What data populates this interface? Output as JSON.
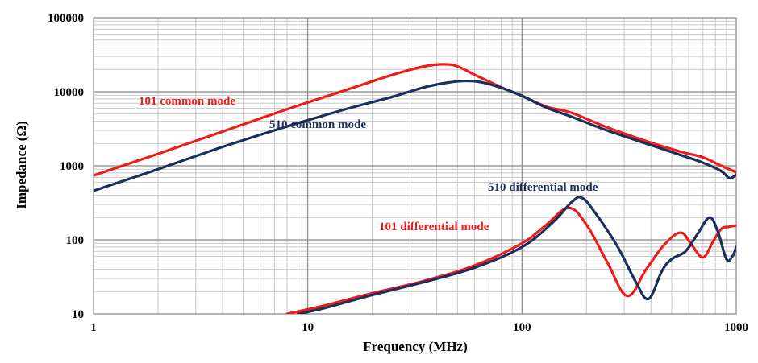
{
  "chart_data": {
    "type": "line",
    "title": "",
    "xlabel": "Frequency (MHz)",
    "ylabel": "Impedance (Ω)",
    "x_scale": "log",
    "y_scale": "log",
    "xlim": [
      1,
      1000
    ],
    "ylim": [
      10,
      100000
    ],
    "grid": true,
    "x_ticks": [
      {
        "value": 1,
        "label": "1"
      },
      {
        "value": 10,
        "label": "10"
      },
      {
        "value": 100,
        "label": "100"
      },
      {
        "value": 1000,
        "label": "1000"
      }
    ],
    "y_ticks": [
      {
        "value": 10,
        "label": "10"
      },
      {
        "value": 100,
        "label": "100"
      },
      {
        "value": 1000,
        "label": "1000"
      },
      {
        "value": 10000,
        "label": "10000"
      },
      {
        "value": 100000,
        "label": "100000"
      }
    ],
    "series": [
      {
        "name": "101 common mode",
        "color": "#ee1c1c",
        "x": [
          1,
          2,
          4,
          8,
          15,
          25,
          35,
          43,
          50,
          60,
          80,
          100,
          130,
          170,
          250,
          400,
          550,
          700,
          850,
          1000
        ],
        "y": [
          740,
          1450,
          2900,
          5800,
          10500,
          17000,
          22000,
          23500,
          22000,
          17000,
          11500,
          8800,
          6300,
          5200,
          3300,
          2050,
          1550,
          1300,
          1000,
          820
        ]
      },
      {
        "name": "510 common mode",
        "color": "#1b2f5c",
        "x": [
          1,
          2,
          4,
          8,
          15,
          25,
          35,
          45,
          55,
          65,
          80,
          100,
          130,
          170,
          250,
          400,
          550,
          700,
          850,
          930,
          1000
        ],
        "y": [
          460,
          900,
          1800,
          3400,
          5800,
          8600,
          11500,
          13300,
          14000,
          13400,
          11300,
          8800,
          6100,
          4600,
          3000,
          1900,
          1400,
          1100,
          850,
          680,
          760
        ]
      },
      {
        "name": "101 differential mode",
        "color": "#ee1c1c",
        "x": [
          8,
          12,
          20,
          35,
          60,
          100,
          130,
          165,
          200,
          250,
          310,
          380,
          460,
          550,
          620,
          700,
          780,
          850,
          920,
          1000
        ],
        "y": [
          10,
          13,
          19,
          28,
          45,
          90,
          160,
          270,
          160,
          50,
          17.5,
          40,
          85,
          125,
          85,
          58,
          95,
          140,
          150,
          155
        ]
      },
      {
        "name": "510 differential mode",
        "color": "#1b2f5c",
        "x": [
          9,
          12,
          20,
          35,
          60,
          100,
          140,
          170,
          190,
          220,
          280,
          340,
          390,
          450,
          500,
          580,
          660,
          750,
          820,
          900,
          960,
          1000
        ],
        "y": [
          10,
          12,
          18,
          27,
          42,
          80,
          175,
          320,
          370,
          230,
          80,
          27,
          16,
          38,
          55,
          70,
          120,
          200,
          130,
          55,
          60,
          80
        ]
      }
    ],
    "annotations": [
      {
        "text": "101 common mode",
        "color": "#ee1c1c"
      },
      {
        "text": "510 common mode",
        "color": "#1b2f5c"
      },
      {
        "text": "510 differential mode",
        "color": "#1b2f5c"
      },
      {
        "text": "101 differential mode",
        "color": "#ee1c1c"
      }
    ]
  }
}
